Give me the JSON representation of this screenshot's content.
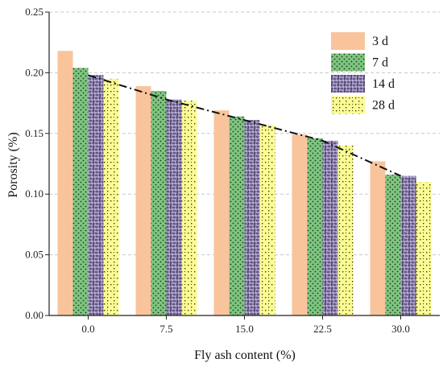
{
  "chart_data": {
    "type": "bar",
    "xlabel": "Fly ash content (%)",
    "ylabel": "Porosity (%)",
    "ylim": [
      0,
      0.25
    ],
    "yticks": [
      "0.00",
      "0.05",
      "0.10",
      "0.15",
      "0.20",
      "0.25"
    ],
    "categories": [
      "0.0",
      "7.5",
      "15.0",
      "22.5",
      "30.0"
    ],
    "grid": "horizontal dashed",
    "legend": "top-right",
    "series": [
      {
        "name": "3 d",
        "color": "#f9c49c",
        "pattern": "solid",
        "values": [
          0.218,
          0.189,
          0.169,
          0.149,
          0.127
        ]
      },
      {
        "name": "7 d",
        "color": "#7fc580",
        "pattern": "dots",
        "values": [
          0.204,
          0.185,
          0.164,
          0.146,
          0.116
        ]
      },
      {
        "name": "14 d",
        "color": "#9d8fc2",
        "pattern": "weave",
        "values": [
          0.198,
          0.178,
          0.161,
          0.144,
          0.115
        ]
      },
      {
        "name": "28 d",
        "color": "#fbfb94",
        "pattern": "squares",
        "values": [
          0.195,
          0.177,
          0.157,
          0.14,
          0.11
        ]
      }
    ],
    "trend_line": {
      "style": "dash-dot",
      "color": "#111111",
      "values": [
        0.198,
        0.178,
        0.161,
        0.144,
        0.115
      ]
    }
  }
}
